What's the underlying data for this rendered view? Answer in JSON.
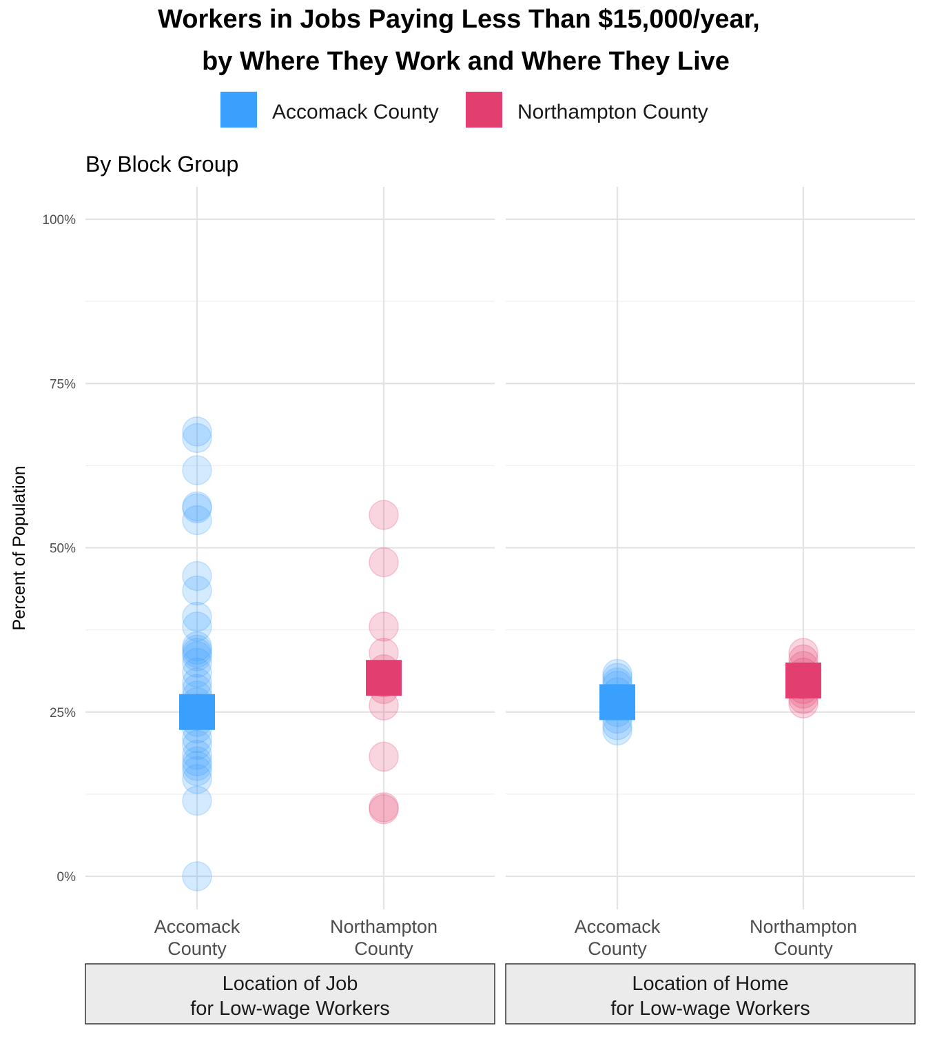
{
  "chart_data": {
    "type": "scatter",
    "title": "Workers in Jobs Paying Less Than $15,000/year,",
    "title_line2": "by Where They Work and Where They Live",
    "subtitle": "By Block Group",
    "ylabel": "Percent of Population",
    "xlabel": "",
    "ylim": [
      -5,
      105
    ],
    "yticks": [
      0,
      25,
      50,
      75,
      100
    ],
    "ytick_labels": [
      "0%",
      "25%",
      "50%",
      "75%",
      "100%"
    ],
    "grid": true,
    "legend_position": "top",
    "legend": [
      {
        "name": "Accomack County",
        "color": "#3aa0fd"
      },
      {
        "name": "Northampton County",
        "color": "#e23e6f"
      }
    ],
    "categories": [
      {
        "line1": "Accomack",
        "line2": "County"
      },
      {
        "line1": "Northampton",
        "line2": "County"
      }
    ],
    "panels": [
      {
        "label_line1": "Location of Job",
        "label_line2": "for Low-wage Workers",
        "series": [
          {
            "name": "Accomack County",
            "points": [
              0,
              11.5,
              14.8,
              16,
              16.8,
              17.5,
              18.5,
              20,
              21,
              22.5,
              23.5,
              24.5,
              25.5,
              26.5,
              27.5,
              28.5,
              29.5,
              31,
              32.5,
              33.5,
              34,
              34.5,
              35,
              38,
              39.5,
              43.5,
              45.7,
              54.2,
              56,
              56.3,
              61.8,
              66.7,
              67.7
            ],
            "mean": 25
          },
          {
            "name": "Northampton County",
            "points": [
              10.2,
              10.5,
              18.2,
              26,
              28.5,
              29.5,
              30.5,
              31.5,
              34,
              38,
              47.8,
              55
            ],
            "mean": 30.2
          }
        ]
      },
      {
        "label_line1": "Location of Home",
        "label_line2": "for Low-wage Workers",
        "series": [
          {
            "name": "Accomack County",
            "points": [
              22.2,
              23,
              24,
              25,
              26,
              27,
              28,
              29,
              29.5,
              30.2,
              30.8
            ],
            "mean": 26.5
          },
          {
            "name": "Northampton County",
            "points": [
              26.3,
              27,
              27.8,
              28.5,
              29.2,
              30,
              31,
              32,
              33,
              34
            ],
            "mean": 29.8
          }
        ]
      }
    ]
  }
}
